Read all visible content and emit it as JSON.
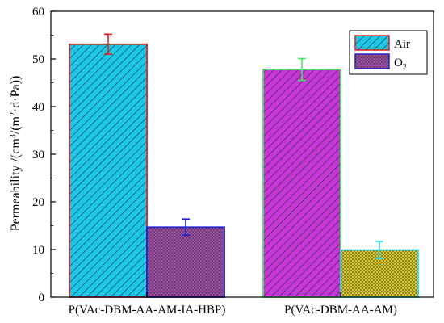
{
  "chart_data": {
    "type": "bar",
    "title": "",
    "xlabel": "",
    "ylabel_parts": [
      "Permeability /(cm",
      "3",
      "/(m",
      "2",
      "·d·Pa))"
    ],
    "ylim": [
      0,
      60
    ],
    "yticks": [
      0,
      10,
      20,
      30,
      40,
      50,
      60
    ],
    "ytick_labels": [
      "0",
      "10",
      "20",
      "30",
      "40",
      "50",
      "60"
    ],
    "grid": false,
    "legend_position": "top-right",
    "categories": [
      "P(VAc-DBM-AA-AM-IA-HBP)",
      "P(VAc-DBM-AA-AM)"
    ],
    "series": [
      {
        "name": "Air",
        "values": [
          53.1,
          47.8
        ],
        "errors": [
          2.1,
          2.3
        ]
      },
      {
        "name": "O",
        "name_sub": "2",
        "values": [
          14.7,
          9.9
        ],
        "errors": [
          1.7,
          1.8
        ]
      }
    ],
    "bar_styles": [
      [
        {
          "fill": "#1cc8e6",
          "pattern": "diag",
          "stroke": "#e02020",
          "err": "#e02020"
        },
        {
          "fill": "#a04ea8",
          "pattern": "dots",
          "stroke": "#2020d0",
          "err": "#2020d0"
        }
      ],
      [
        {
          "fill": "#c836d6",
          "pattern": "diag",
          "stroke": "#40e860",
          "err": "#40e860"
        },
        {
          "fill": "#d8c828",
          "pattern": "dots",
          "stroke": "#30d8e8",
          "err": "#30d8e8"
        }
      ]
    ],
    "legend_styles": [
      {
        "fill": "#1cc8e6",
        "pattern": "diag",
        "stroke": "#e02020"
      },
      {
        "fill": "#a04ea8",
        "pattern": "dots",
        "stroke": "#2020d0"
      }
    ]
  }
}
